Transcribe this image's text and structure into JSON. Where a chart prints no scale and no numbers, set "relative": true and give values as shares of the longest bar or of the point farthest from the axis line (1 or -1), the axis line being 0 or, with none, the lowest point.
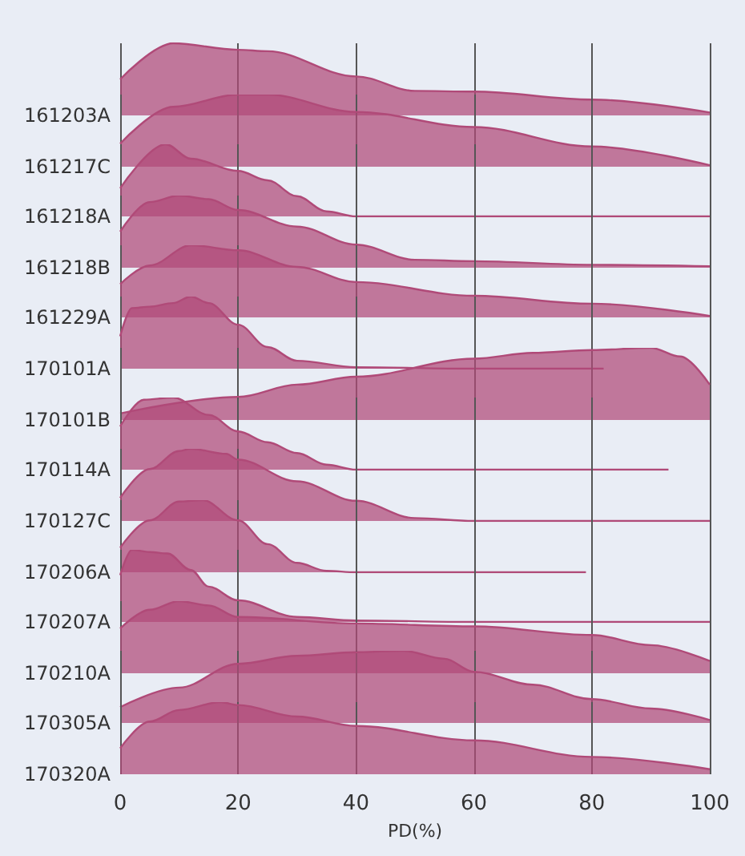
{
  "chart_data": [
    {
      "type": "area",
      "relative": true,
      "xlim": [
        0,
        100
      ],
      "xticks": [
        0,
        20,
        40,
        60,
        80,
        100
      ],
      "grid": "x",
      "tick_labels": false,
      "series": [
        {
          "name": "161203A",
          "color": "#b04a78",
          "x": [
            0,
            9,
            20,
            25,
            40,
            50,
            60,
            80,
            100
          ],
          "values": [
            0.5,
            1,
            0.91,
            0.89,
            0.54,
            0.34,
            0.33,
            0.22,
            0.04
          ]
        }
      ]
    },
    {
      "type": "area",
      "relative": true,
      "xlim": [
        0,
        100
      ],
      "xticks": [
        0,
        20,
        40,
        60,
        80,
        100
      ],
      "grid": "x",
      "tick_labels": false,
      "series": [
        {
          "name": "161217C",
          "color": "#b04a78",
          "x": [
            0,
            9,
            20,
            25,
            40,
            60,
            80,
            100
          ],
          "values": [
            0.32,
            0.83,
            1,
            1,
            0.76,
            0.55,
            0.28,
            0.02
          ]
        }
      ]
    },
    {
      "type": "area",
      "relative": true,
      "xlim": [
        0,
        100
      ],
      "xticks": [
        0,
        20,
        40,
        60,
        80,
        100
      ],
      "grid": "x",
      "tick_labels": false,
      "series": [
        {
          "name": "161218A",
          "color": "#b04a78",
          "x": [
            0,
            7.7,
            12,
            20,
            25,
            30,
            35,
            40,
            100
          ],
          "values": [
            0.39,
            1,
            0.8,
            0.63,
            0.5,
            0.28,
            0.07,
            0,
            0
          ]
        }
      ]
    },
    {
      "type": "area",
      "relative": true,
      "xlim": [
        0,
        100
      ],
      "xticks": [
        0,
        20,
        40,
        60,
        80,
        100
      ],
      "grid": "x",
      "tick_labels": false,
      "series": [
        {
          "name": "161218B",
          "color": "#b04a78",
          "x": [
            0,
            5,
            10,
            15,
            20,
            30,
            40,
            50,
            60,
            80,
            100
          ],
          "values": [
            0.5,
            0.91,
            1,
            0.95,
            0.8,
            0.57,
            0.32,
            0.11,
            0.09,
            0.04,
            0.02
          ]
        }
      ]
    },
    {
      "type": "area",
      "relative": true,
      "xlim": [
        0,
        100
      ],
      "xticks": [
        0,
        20,
        40,
        60,
        80,
        100
      ],
      "grid": "x",
      "tick_labels": false,
      "series": [
        {
          "name": "161229A",
          "color": "#b04a78",
          "x": [
            0,
            5,
            12,
            20,
            30,
            40,
            60,
            80,
            100
          ],
          "values": [
            0.46,
            0.72,
            1,
            0.93,
            0.7,
            0.49,
            0.3,
            0.19,
            0.02
          ]
        }
      ]
    },
    {
      "type": "area",
      "relative": true,
      "xlim": [
        0,
        100
      ],
      "xticks": [
        0,
        20,
        40,
        60,
        80,
        100
      ],
      "grid": "x",
      "tick_labels": false,
      "series": [
        {
          "name": "170101A",
          "color": "#b04a78",
          "x": [
            0,
            2,
            5,
            9,
            12,
            15,
            20,
            25,
            30,
            40,
            60,
            82
          ],
          "values": [
            0.45,
            0.84,
            0.86,
            0.91,
            1,
            0.91,
            0.61,
            0.3,
            0.11,
            0.02,
            0,
            0
          ]
        }
      ]
    },
    {
      "type": "area",
      "relative": true,
      "xlim": [
        0,
        100
      ],
      "xticks": [
        0,
        20,
        40,
        60,
        80,
        100
      ],
      "grid": "x",
      "tick_labels": false,
      "series": [
        {
          "name": "170101B",
          "color": "#b04a78",
          "x": [
            0,
            20,
            30,
            40,
            60,
            70,
            80,
            90,
            95,
            100
          ],
          "values": [
            0.09,
            0.32,
            0.49,
            0.6,
            0.85,
            0.93,
            0.97,
            1,
            0.88,
            0.49
          ]
        }
      ]
    },
    {
      "type": "area",
      "relative": true,
      "xlim": [
        0,
        100
      ],
      "xticks": [
        0,
        20,
        40,
        60,
        80,
        100
      ],
      "grid": "x",
      "tick_labels": false,
      "series": [
        {
          "name": "170114A",
          "color": "#b04a78",
          "x": [
            0,
            4,
            9,
            15,
            20,
            25,
            30,
            35,
            40,
            93
          ],
          "values": [
            0.6,
            0.97,
            1,
            0.76,
            0.53,
            0.38,
            0.23,
            0.07,
            0,
            0
          ]
        }
      ]
    },
    {
      "type": "area",
      "relative": true,
      "xlim": [
        0,
        100
      ],
      "xticks": [
        0,
        20,
        40,
        60,
        80,
        100
      ],
      "grid": "x",
      "tick_labels": false,
      "series": [
        {
          "name": "170127C",
          "color": "#b04a78",
          "x": [
            0,
            5,
            10,
            12,
            18,
            20,
            30,
            40,
            50,
            60,
            100
          ],
          "values": [
            0.32,
            0.72,
            0.97,
            1,
            0.93,
            0.85,
            0.55,
            0.28,
            0.04,
            0,
            0
          ]
        }
      ]
    },
    {
      "type": "area",
      "relative": true,
      "xlim": [
        0,
        100
      ],
      "xticks": [
        0,
        20,
        40,
        60,
        80,
        100
      ],
      "grid": "x",
      "tick_labels": false,
      "series": [
        {
          "name": "170206A",
          "color": "#b04a78",
          "x": [
            0,
            5,
            10,
            14,
            20,
            25,
            30,
            35,
            40,
            79
          ],
          "values": [
            0.34,
            0.72,
            0.98,
            1,
            0.72,
            0.39,
            0.13,
            0.02,
            0,
            0
          ]
        }
      ]
    },
    {
      "type": "area",
      "relative": true,
      "xlim": [
        0,
        100
      ],
      "xticks": [
        0,
        20,
        40,
        60,
        80,
        100
      ],
      "grid": "x",
      "tick_labels": false,
      "series": [
        {
          "name": "170207A",
          "color": "#b04a78",
          "x": [
            0,
            2,
            5,
            8,
            12,
            15,
            20,
            30,
            40,
            60,
            100
          ],
          "values": [
            0.65,
            1,
            0.97,
            0.95,
            0.72,
            0.49,
            0.3,
            0.07,
            0.02,
            0,
            0
          ]
        }
      ]
    },
    {
      "type": "area",
      "relative": true,
      "xlim": [
        0,
        100
      ],
      "xticks": [
        0,
        20,
        40,
        60,
        80,
        100
      ],
      "grid": "x",
      "tick_labels": false,
      "series": [
        {
          "name": "170210A",
          "color": "#b04a78",
          "x": [
            0,
            5,
            10,
            15,
            20,
            40,
            60,
            80,
            90,
            100
          ],
          "values": [
            0.62,
            0.88,
            1,
            0.94,
            0.78,
            0.69,
            0.65,
            0.53,
            0.39,
            0.17
          ]
        }
      ]
    },
    {
      "type": "area",
      "relative": true,
      "xlim": [
        0,
        100
      ],
      "xticks": [
        0,
        20,
        40,
        60,
        80,
        100
      ],
      "grid": "x",
      "tick_labels": false,
      "series": [
        {
          "name": "170305A",
          "color": "#b04a78",
          "x": [
            0,
            10,
            20,
            30,
            40,
            48,
            55,
            60,
            70,
            80,
            90,
            100
          ],
          "values": [
            0.22,
            0.49,
            0.82,
            0.93,
            0.98,
            1.0,
            0.89,
            0.71,
            0.53,
            0.33,
            0.2,
            0.04
          ]
        }
      ]
    },
    {
      "type": "area",
      "relative": true,
      "xlim": [
        0,
        100
      ],
      "xticks": [
        0,
        20,
        40,
        60,
        80,
        100
      ],
      "grid": "x",
      "tick_labels": "x",
      "xlabel": "PD(%)",
      "series": [
        {
          "name": "170320A",
          "color": "#b04a78",
          "x": [
            0,
            5,
            10,
            17,
            20,
            30,
            40,
            60,
            80,
            100
          ],
          "values": [
            0.36,
            0.73,
            0.89,
            1.0,
            0.96,
            0.8,
            0.67,
            0.47,
            0.24,
            0.07
          ]
        }
      ]
    }
  ]
}
